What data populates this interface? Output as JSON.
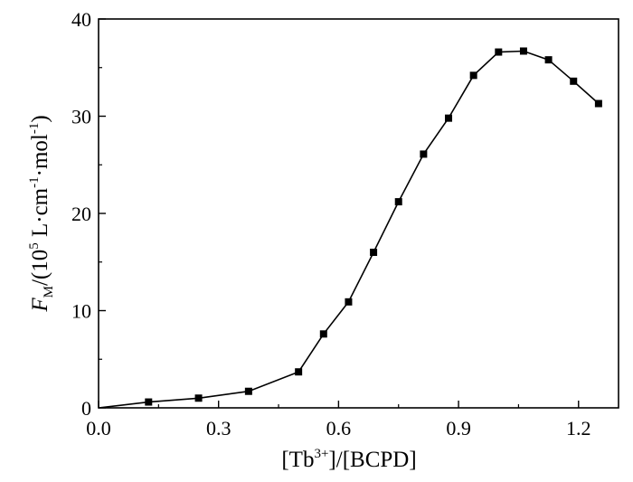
{
  "chart_data": {
    "type": "line",
    "marker": "square",
    "color": "#000000",
    "xlim": [
      0.0,
      1.3
    ],
    "ylim": [
      0,
      40
    ],
    "xticks": [
      "0.0",
      "0.3",
      "0.6",
      "0.9",
      "1.2"
    ],
    "xtick_values": [
      0.0,
      0.3,
      0.6,
      0.9,
      1.2
    ],
    "yticks": [
      "0",
      "10",
      "20",
      "30",
      "40"
    ],
    "ytick_values": [
      0,
      10,
      20,
      30,
      40
    ],
    "xlabel": {
      "prefix": "[Tb",
      "sup": "3+",
      "suffix": "]/[BCPD]"
    },
    "ylabel": {
      "symbol": "F",
      "sub": "M",
      "unit_open": "/(10",
      "unit_exp": "5",
      "unit_mid": " L·cm",
      "unit_exp2": "-1",
      "unit_mid2": "·mol",
      "unit_exp3": "-1",
      "unit_close": ")"
    },
    "grid": false,
    "series": [
      {
        "x": [
          0.0,
          0.125,
          0.25,
          0.375,
          0.5,
          0.5625,
          0.625,
          0.6875,
          0.75,
          0.8125,
          0.875,
          0.9375,
          1.0,
          1.0625,
          1.125,
          1.1875,
          1.25
        ],
        "y": [
          0.0,
          0.6,
          1.0,
          1.7,
          3.7,
          7.6,
          10.9,
          16.0,
          21.2,
          26.1,
          29.8,
          34.2,
          36.6,
          36.7,
          35.8,
          33.6,
          31.3
        ],
        "marker_first": false
      }
    ]
  }
}
